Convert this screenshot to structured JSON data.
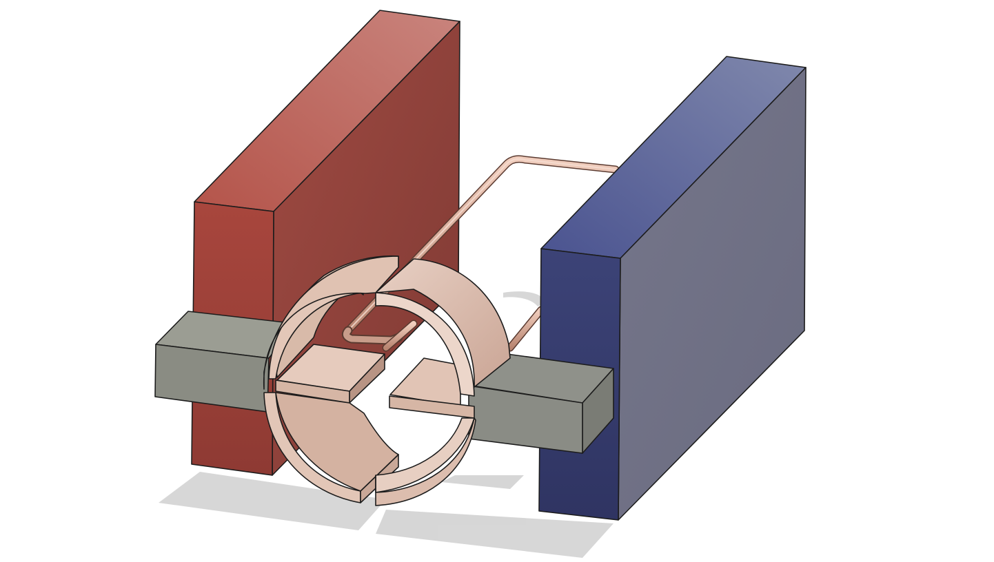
{
  "scene": {
    "subject": "dc-motor-3d-model",
    "parts": [
      "north-magnet-block",
      "south-magnet-block",
      "left-brush-bar",
      "right-brush-bar",
      "split-ring-commutator",
      "wire-coil-loop"
    ]
  },
  "colors": {
    "background": "#ffffff",
    "north_magnet": "#b8605a",
    "south_magnet": "#626b98",
    "brush": "#8c8e86",
    "commutator": "#d9b8a8",
    "wire": "#d7a58f",
    "edge": "#1c1c1c",
    "shadow": "#cfcfcf"
  }
}
